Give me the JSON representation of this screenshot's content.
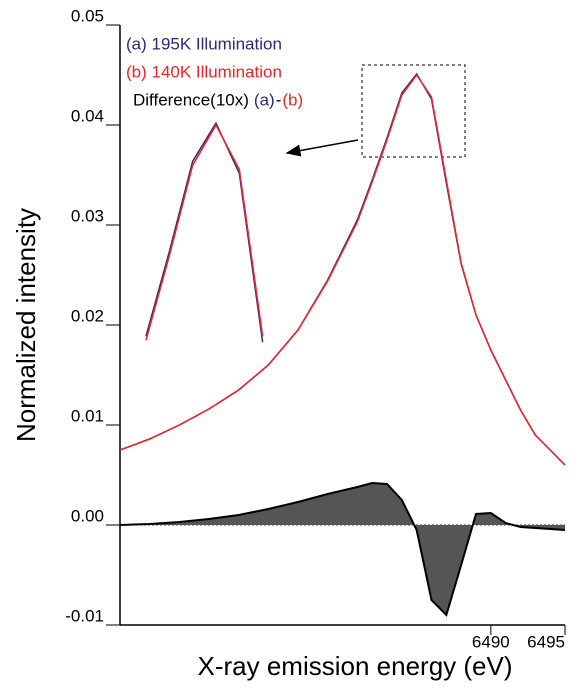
{
  "chart_data": {
    "type": "line",
    "xlabel": "X-ray emission energy (eV)",
    "ylabel": "Normalized intensity",
    "x": [
      6465,
      6467,
      6469,
      6471,
      6473,
      6475,
      6477,
      6479,
      6481,
      6482,
      6483,
      6484,
      6485,
      6486,
      6487,
      6488,
      6489,
      6490,
      6491,
      6492,
      6493,
      6494,
      6495
    ],
    "series": [
      {
        "name": "(a) 195K Illumination",
        "color": "#2a2a7a",
        "values": [
          0.0075,
          0.0086,
          0.01,
          0.0116,
          0.0135,
          0.016,
          0.0195,
          0.0245,
          0.0305,
          0.0345,
          0.0387,
          0.0432,
          0.0451,
          0.0426,
          0.0342,
          0.0261,
          0.021,
          0.0175,
          0.0145,
          0.0115,
          0.009,
          0.0075,
          0.006
        ]
      },
      {
        "name": "(b) 140K Illumination",
        "color": "#e8262a",
        "values": [
          0.0075,
          0.0086,
          0.01,
          0.0116,
          0.0135,
          0.016,
          0.0195,
          0.0244,
          0.0303,
          0.0343,
          0.0385,
          0.043,
          0.045,
          0.0428,
          0.0345,
          0.0262,
          0.021,
          0.0175,
          0.0145,
          0.0115,
          0.009,
          0.0075,
          0.006
        ]
      },
      {
        "name": "Difference(10x)",
        "color": "#000000",
        "fill": "#555555",
        "values": [
          0,
          0.0001,
          0.0003,
          0.0006,
          0.001,
          0.0016,
          0.0023,
          0.0031,
          0.0038,
          0.0042,
          0.0041,
          0.0025,
          -0.0005,
          -0.0075,
          -0.009,
          -0.004,
          0.0011,
          0.0012,
          0.0002,
          -0.0002,
          -0.0003,
          -0.0004,
          -0.0005
        ]
      }
    ],
    "difference_parts": [
      "(a)",
      "-",
      "(b)"
    ],
    "xlim": [
      6465,
      6495
    ],
    "xticks": [
      6490,
      6495
    ],
    "ylim": [
      -0.01,
      0.05
    ],
    "yticks": [
      -0.01,
      {
        "value": 0,
        "label": "0.00"
      },
      0.01,
      0.02,
      0.03,
      0.04,
      0.05
    ]
  }
}
